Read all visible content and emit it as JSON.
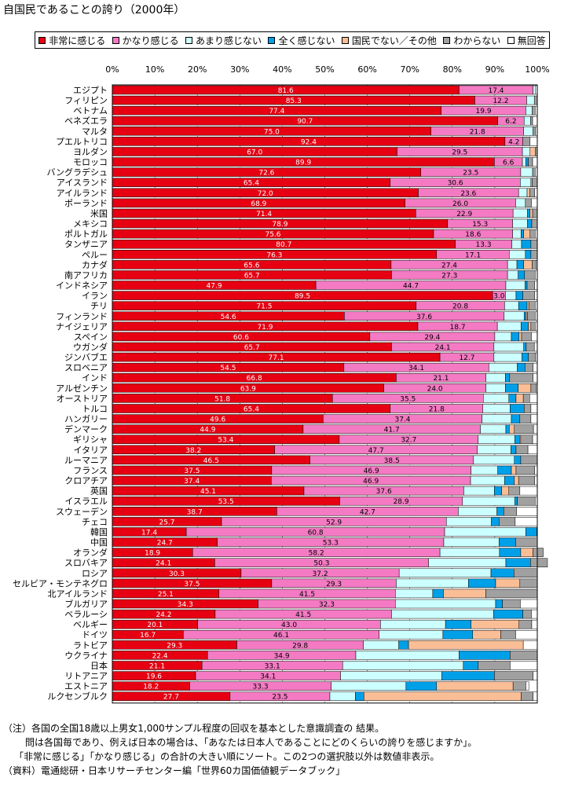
{
  "chart_data": {
    "type": "bar",
    "orientation": "horizontal",
    "stacked": "percent",
    "title": "自国民であることの誇り（2000年）",
    "xlim": [
      0,
      100
    ],
    "x_ticks": [
      "0%",
      "10%",
      "20%",
      "30%",
      "40%",
      "50%",
      "60%",
      "70%",
      "80%",
      "90%",
      "100%"
    ],
    "legend_placement": "top",
    "grid": true,
    "categories": [
      "エジプト",
      "フィリピン",
      "ベトナム",
      "ベネズエラ",
      "マルタ",
      "プエルトリコ",
      "ヨルダン",
      "モロッコ",
      "バングラデシュ",
      "アイスランド",
      "アイルランド",
      "ポーランド",
      "米国",
      "メキシコ",
      "ポルトガル",
      "タンザニア",
      "ペルー",
      "カナダ",
      "南アフリカ",
      "インドネシア",
      "イラン",
      "チリ",
      "フィンランド",
      "ナイジェリア",
      "スペイン",
      "ウガンダ",
      "ジンバブエ",
      "スロベニア",
      "インド",
      "アルゼンチン",
      "オーストリア",
      "トルコ",
      "ハンガリー",
      "デンマーク",
      "ギリシャ",
      "イタリア",
      "ルーマニア",
      "フランス",
      "クロアチア",
      "英国",
      "イスラエル",
      "スウェーデン",
      "チェコ",
      "韓国",
      "中国",
      "オランダ",
      "スロバキア",
      "ロシア",
      "セルビア・モンテネグロ",
      "北アイルランド",
      "ブルガリア",
      "ベラルーシ",
      "ベルギー",
      "ドイツ",
      "ラトビア",
      "ウクライナ",
      "日本",
      "リトアニア",
      "エストニア",
      "ルクセンブルク"
    ],
    "series": [
      {
        "name": "非常に感じる",
        "color": "#e60012",
        "labeled": true,
        "values": [
          81.6,
          85.3,
          77.4,
          90.7,
          75.0,
          92.4,
          67.0,
          89.9,
          72.6,
          65.4,
          72.0,
          68.9,
          71.4,
          78.9,
          75.6,
          80.7,
          76.3,
          65.6,
          65.7,
          47.9,
          89.5,
          71.5,
          54.6,
          71.9,
          60.6,
          65.7,
          77.1,
          54.5,
          66.8,
          63.9,
          51.8,
          65.4,
          49.6,
          44.9,
          53.4,
          38.2,
          46.5,
          37.5,
          37.4,
          45.1,
          53.5,
          38.7,
          25.7,
          17.4,
          24.7,
          18.9,
          24.1,
          30.3,
          37.5,
          25.1,
          34.3,
          24.2,
          20.1,
          16.7,
          29.3,
          22.4,
          21.1,
          19.6,
          18.2,
          27.7
        ]
      },
      {
        "name": "かなり感じる",
        "color": "#f47ac3",
        "labeled": true,
        "values": [
          17.4,
          12.2,
          19.9,
          6.2,
          21.8,
          4.2,
          29.5,
          6.6,
          23.5,
          30.6,
          23.6,
          26.0,
          22.9,
          15.3,
          18.6,
          13.3,
          17.1,
          27.4,
          27.3,
          44.7,
          3.0,
          20.8,
          37.6,
          18.7,
          29.4,
          24.1,
          12.7,
          34.1,
          21.1,
          24.0,
          35.5,
          21.8,
          37.4,
          41.7,
          32.7,
          47.7,
          38.5,
          46.9,
          46.9,
          37.6,
          28.9,
          42.7,
          52.9,
          60.8,
          53.3,
          58.2,
          50.3,
          37.2,
          29.3,
          41.5,
          32.3,
          41.5,
          43.0,
          46.1,
          29.8,
          34.9,
          33.1,
          34.1,
          33.3,
          23.5
        ]
      },
      {
        "name": "あまり感じない",
        "color": "#ccffff",
        "values": [
          0.6,
          1.8,
          1.5,
          1.5,
          2.2,
          0,
          1.8,
          0.8,
          2.8,
          2.5,
          2.0,
          2.3,
          3.4,
          3.5,
          2.0,
          2.3,
          3.8,
          2.2,
          2.5,
          4.5,
          2.5,
          3.3,
          4.7,
          5.6,
          3.9,
          7.0,
          6.6,
          6.7,
          4.6,
          4.6,
          6.0,
          6.4,
          6.9,
          6.0,
          8.6,
          7.9,
          9.6,
          6.3,
          8.0,
          7.2,
          12.3,
          9.1,
          10.6,
          19.1,
          13.0,
          14.0,
          18.2,
          21.6,
          17.0,
          8.8,
          23.6,
          24.0,
          15.3,
          15.0,
          8.3,
          24.3,
          28.4,
          23.8,
          17.6,
          6.0
        ]
      },
      {
        "name": "全く感じない",
        "color": "#00a0e9",
        "values": [
          0,
          0,
          0,
          0,
          0,
          0,
          0,
          0.6,
          0,
          0,
          0,
          0,
          0.6,
          1.0,
          0.6,
          2.2,
          1.3,
          1.6,
          1.5,
          0.5,
          1.6,
          2.0,
          0.5,
          1.7,
          1.8,
          0.6,
          1.5,
          1.8,
          1.0,
          3.0,
          1.7,
          3.3,
          2.0,
          0.8,
          1.1,
          1.2,
          1.5,
          3.2,
          2.3,
          1.7,
          0.6,
          1.6,
          1.8,
          2.6,
          3.9,
          5.0,
          5.8,
          5.4,
          6.4,
          2.5,
          1.6,
          6.9,
          6.0,
          7.0,
          2.3,
          12.0,
          3.5,
          12.4,
          7.2,
          2.0
        ]
      },
      {
        "name": "国民でない／その他",
        "color": "#fabe96",
        "values": [
          0,
          0,
          0,
          0,
          0,
          0,
          1.2,
          0,
          0,
          0.3,
          0.6,
          0,
          0.6,
          0,
          1.5,
          0,
          0,
          2.0,
          0,
          0,
          0,
          0.4,
          0.3,
          0.6,
          0.6,
          0,
          0,
          0,
          0,
          3.0,
          1.7,
          0,
          0,
          1.2,
          0.3,
          0,
          0,
          1.1,
          1.0,
          1.7,
          0,
          0,
          0,
          0,
          0,
          2.9,
          0,
          0,
          5.7,
          10.0,
          0,
          0,
          11.3,
          6.6,
          27.0,
          0,
          0,
          0,
          18.0,
          37.0
        ]
      },
      {
        "name": "わからない",
        "color": "#a0a0a0",
        "values": [
          0,
          0.7,
          0.7,
          0.5,
          0.6,
          1.7,
          0.5,
          1.0,
          0.6,
          1.2,
          1.2,
          1.4,
          1.1,
          1.3,
          1.2,
          1.5,
          1.5,
          0.9,
          2.5,
          1.8,
          2.8,
          1.5,
          1.8,
          1.0,
          2.3,
          1.9,
          1.7,
          1.9,
          5.5,
          1.2,
          1.5,
          1.6,
          2.6,
          4.5,
          2.8,
          2.8,
          3.9,
          4.4,
          3.8,
          2.6,
          4.2,
          3.0,
          3.8,
          0,
          5.1,
          2.4,
          4.0,
          5.5,
          4.1,
          12.1,
          4.2,
          2.0,
          3.0,
          3.5,
          0,
          6.4,
          7.5,
          9.1,
          3.0,
          2.8
        ]
      },
      {
        "name": "無回答",
        "color": "#ffffff",
        "values": [
          0.4,
          0,
          0.5,
          1.1,
          0.4,
          1.7,
          0,
          1.1,
          0.5,
          0,
          0.6,
          1.4,
          0,
          0,
          0.5,
          0,
          0,
          0.3,
          0.5,
          0.6,
          0.6,
          0.5,
          0.5,
          0.5,
          1.4,
          0.7,
          0.4,
          1.0,
          1.0,
          0.3,
          1.8,
          1.5,
          1.5,
          0.9,
          1.1,
          2.2,
          0,
          0.6,
          0.6,
          4.1,
          0.5,
          4.9,
          5.2,
          0.1,
          0,
          0,
          0,
          0,
          0,
          0,
          4.0,
          1.4,
          1.3,
          5.1,
          3.3,
          0,
          6.4,
          1.0,
          0.7,
          1.0
        ]
      }
    ]
  },
  "notes": [
    "（注）各国の全国18歳以上男女1,000サンプル程度の回収を基本とした意識調査の 結果。",
    "問は各国毎であり、例えば日本の場合は、「あなたは日本人であることにどのくらいの誇りを感じますか」。",
    "「非常に感じる」「かなり感じる」の合計の大きい順にソート。この2つの選択肢以外は数値非表示。",
    "（資料）電通総研・日本リサーチセンター編「世界60カ国価値観データブック」"
  ]
}
